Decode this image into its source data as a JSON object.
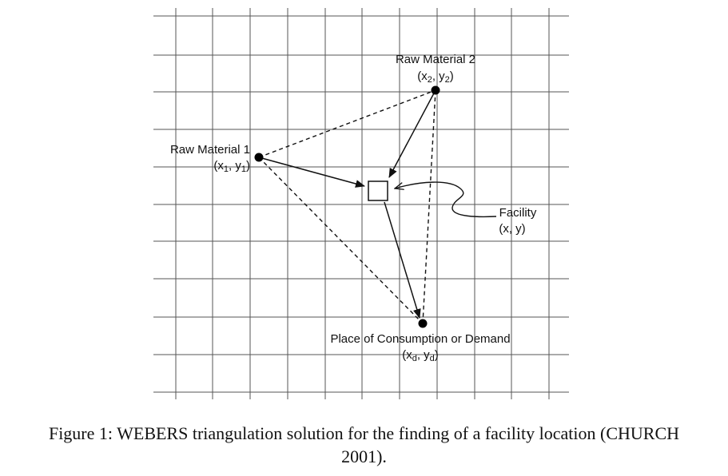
{
  "diagram": {
    "points": {
      "raw_material_1": {
        "label": "Raw Material 1",
        "coord_main": "(x",
        "coord_sub1": "1",
        "coord_mid": ", y",
        "coord_sub2": "1",
        "coord_end": ")"
      },
      "raw_material_2": {
        "label": "Raw Material 2",
        "coord_main": "(x",
        "coord_sub1": "2",
        "coord_mid": ", y",
        "coord_sub2": "2",
        "coord_end": ")"
      },
      "demand": {
        "label": "Place of Consumption or Demand",
        "coord_main": "(x",
        "coord_sub1": "d",
        "coord_mid": ", y",
        "coord_sub2": "d",
        "coord_end": ")"
      },
      "facility": {
        "label": "Facility",
        "coord": "(x, y)"
      }
    }
  },
  "caption": {
    "prefix": "Figure 1: ",
    "name_first": "W",
    "name_rest": "EBERS",
    "middle": " triangulation solution for the finding of a facility location (",
    "ref_first": "C",
    "ref_rest": "HURCH",
    "year": "2001)."
  }
}
